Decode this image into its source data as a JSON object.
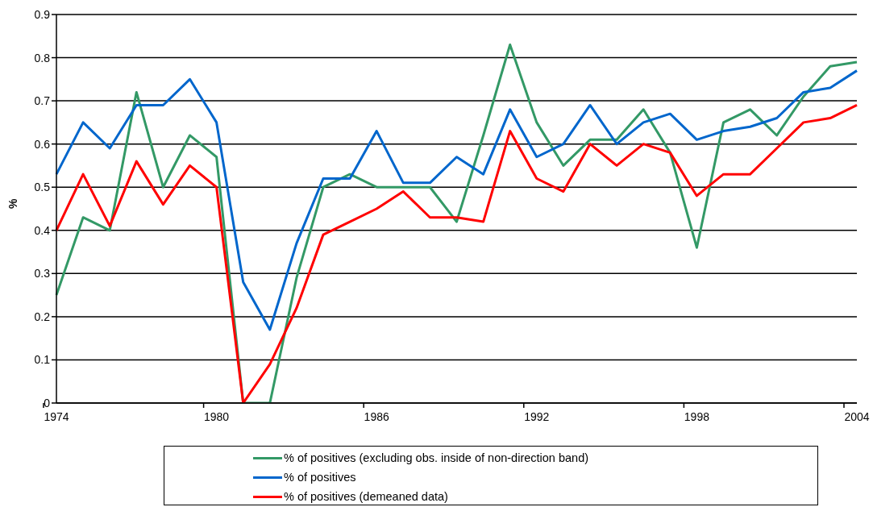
{
  "chart_data": {
    "type": "line",
    "ylabel": "%",
    "categories": [
      "1974",
      null,
      null,
      null,
      null,
      null,
      "1980",
      null,
      null,
      null,
      null,
      null,
      "1986",
      null,
      null,
      null,
      null,
      null,
      "1992",
      null,
      null,
      null,
      null,
      null,
      "1998",
      null,
      null,
      null,
      null,
      null,
      "2004"
    ],
    "series": [
      {
        "name": "% of positives (excluding obs. inside of non-direction band)",
        "color": "#339966",
        "values": [
          0.25,
          0.43,
          0.4,
          0.72,
          0.5,
          0.62,
          0.57,
          0,
          0,
          0.29,
          0.5,
          0.53,
          0.5,
          0.5,
          0.5,
          0.42,
          0.62,
          0.83,
          0.65,
          0.55,
          0.61,
          0.61,
          0.68,
          0.58,
          0.36,
          0.65,
          0.68,
          0.62,
          0.71,
          0.78,
          0.79
        ]
      },
      {
        "name": "% of positives",
        "color": "#0066cc",
        "values": [
          0.53,
          0.65,
          0.59,
          0.69,
          0.69,
          0.75,
          0.65,
          0.28,
          0.17,
          0.37,
          0.52,
          0.52,
          0.63,
          0.51,
          0.51,
          0.57,
          0.53,
          0.68,
          0.57,
          0.6,
          0.69,
          0.6,
          0.65,
          0.67,
          0.61,
          0.63,
          0.64,
          0.66,
          0.72,
          0.73,
          0.77
        ]
      },
      {
        "name": "% of positives (demeaned data)",
        "color": "#ff0000",
        "values": [
          0.4,
          0.53,
          0.41,
          0.56,
          0.46,
          0.55,
          0.5,
          0,
          0.09,
          0.22,
          0.39,
          0.42,
          0.45,
          0.49,
          0.43,
          0.43,
          0.42,
          0.63,
          0.52,
          0.49,
          0.6,
          0.55,
          0.6,
          0.58,
          0.48,
          0.53,
          0.53,
          0.59,
          0.65,
          0.66,
          0.69
        ]
      }
    ],
    "ylim": [
      0,
      0.9
    ],
    "yticks": [
      0,
      0.1,
      0.2,
      0.3,
      0.4,
      0.5,
      0.6,
      0.7,
      0.8,
      0.9
    ],
    "grid": "y",
    "legend": "bottom",
    "marker": "none",
    "line_style": "solid"
  }
}
